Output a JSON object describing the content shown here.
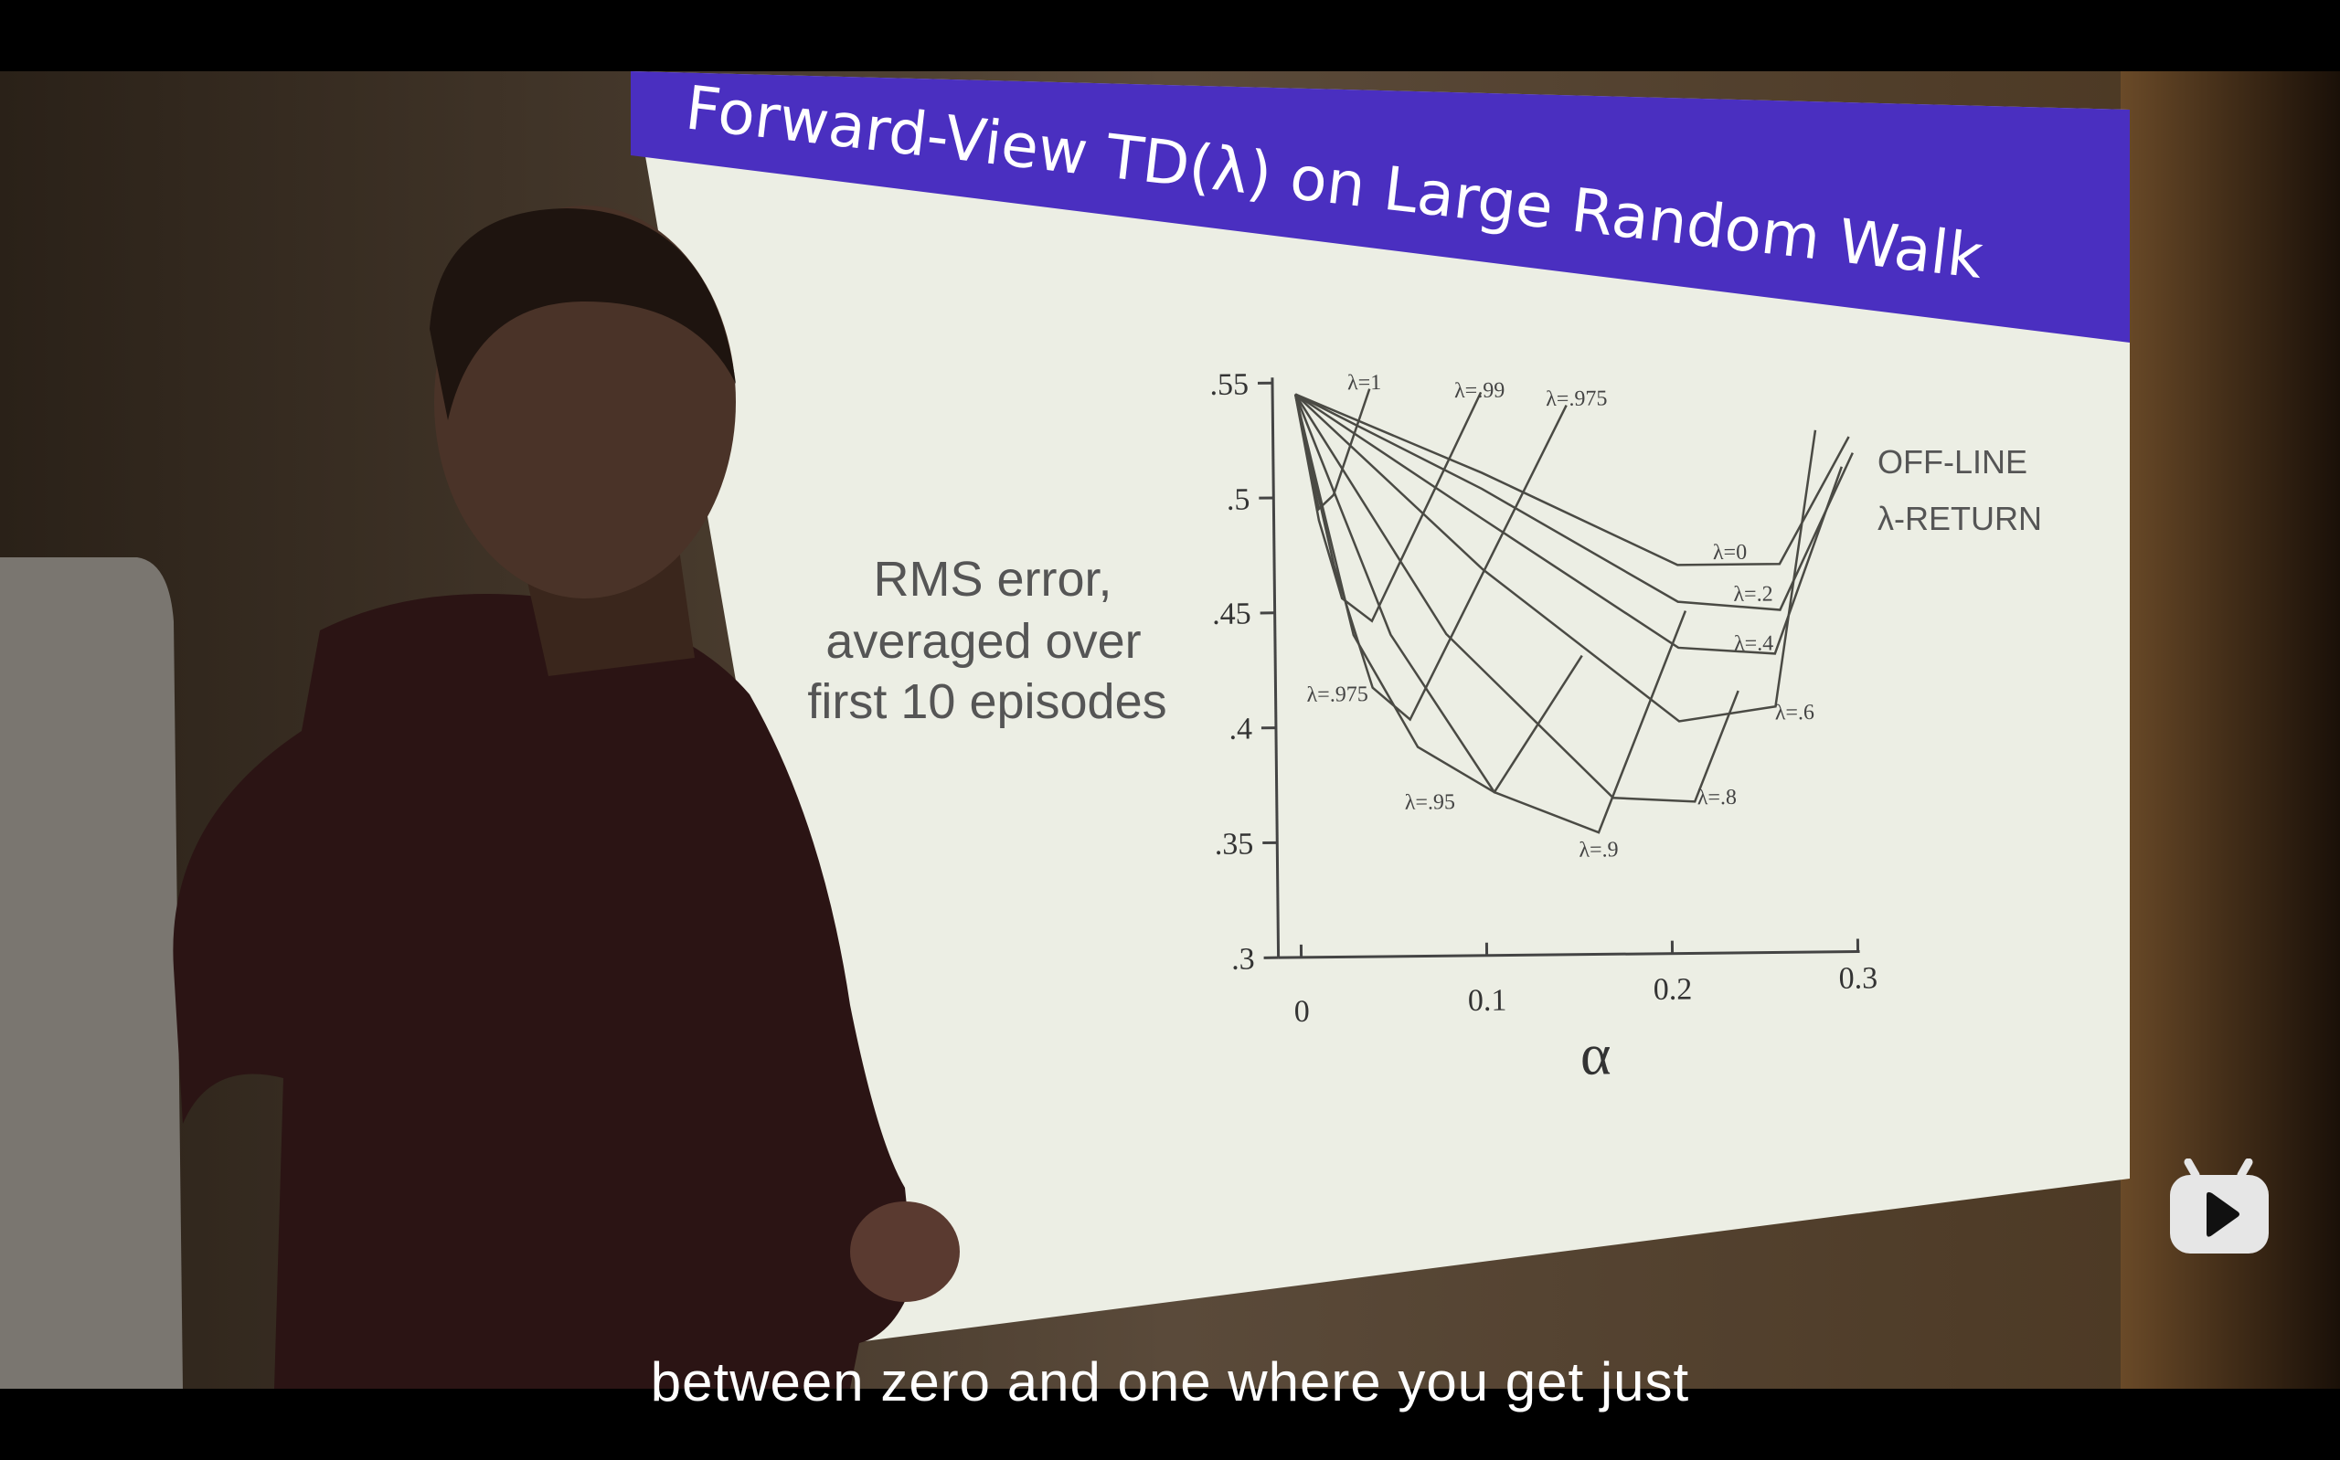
{
  "video": {
    "subtitle": "between zero and one where you get just",
    "logo": "bilibili-tv-play-icon"
  },
  "slide": {
    "title": "Forward-View TD(λ) on Large Random Walk",
    "header_color": "#4a2fc0",
    "ylabel_lines": [
      "RMS error,",
      "averaged over",
      "first 10 episodes"
    ],
    "xlabel": "α",
    "annotation_lines": [
      "OFF-LINE",
      "λ-RETURN"
    ],
    "y_ticks": [
      ".55",
      ".5",
      ".45",
      ".4",
      ".35",
      ".3"
    ],
    "x_ticks": [
      "0",
      "0.1",
      "0.2",
      "0.3"
    ],
    "curve_labels": [
      "λ=1",
      "λ=.99",
      "λ=.975",
      "λ=0",
      "λ=.2",
      "λ=.4",
      "λ=.6",
      "λ=.8",
      "λ=.9",
      "λ=.95",
      "λ=.975"
    ],
    "figure": {
      "x_range": [
        0,
        0.3
      ],
      "y_range": [
        0.3,
        0.55
      ],
      "curves": [
        {
          "lambda": "0",
          "points": [
            [
              0,
              0.545
            ],
            [
              0.1,
              0.51
            ],
            [
              0.205,
              0.469
            ],
            [
              0.26,
              0.469
            ],
            [
              0.298,
              0.524
            ]
          ]
        },
        {
          "lambda": ".2",
          "points": [
            [
              0,
              0.545
            ],
            [
              0.1,
              0.503
            ],
            [
              0.205,
              0.453
            ],
            [
              0.26,
              0.449
            ],
            [
              0.3,
              0.517
            ]
          ]
        },
        {
          "lambda": ".4",
          "points": [
            [
              0,
              0.545
            ],
            [
              0.1,
              0.49
            ],
            [
              0.205,
              0.433
            ],
            [
              0.257,
              0.43
            ],
            [
              0.294,
              0.511
            ]
          ]
        },
        {
          "lambda": ".6",
          "points": [
            [
              0,
              0.545
            ],
            [
              0.1,
              0.468
            ],
            [
              0.205,
              0.401
            ],
            [
              0.257,
              0.407
            ],
            [
              0.28,
              0.527
            ]
          ]
        },
        {
          "lambda": ".8",
          "points": [
            [
              0,
              0.545
            ],
            [
              0.08,
              0.44
            ],
            [
              0.169,
              0.368
            ],
            [
              0.213,
              0.366
            ],
            [
              0.237,
              0.414
            ]
          ]
        },
        {
          "lambda": ".9",
          "points": [
            [
              0,
              0.545
            ],
            [
              0.05,
              0.44
            ],
            [
              0.105,
              0.371
            ],
            [
              0.161,
              0.353
            ],
            [
              0.209,
              0.449
            ]
          ]
        },
        {
          "lambda": ".95",
          "points": [
            [
              0,
              0.545
            ],
            [
              0.03,
              0.44
            ],
            [
              0.064,
              0.391
            ],
            [
              0.105,
              0.371
            ],
            [
              0.153,
              0.43
            ]
          ]
        },
        {
          "lambda": ".975",
          "points": [
            [
              0,
              0.545
            ],
            [
              0.02,
              0.47
            ],
            [
              0.04,
              0.417
            ],
            [
              0.06,
              0.403
            ],
            [
              0.146,
              0.539
            ]
          ]
        },
        {
          "lambda": ".99",
          "points": [
            [
              0,
              0.545
            ],
            [
              0.012,
              0.49
            ],
            [
              0.024,
              0.456
            ],
            [
              0.04,
              0.446
            ],
            [
              0.1,
              0.545
            ]
          ]
        },
        {
          "lambda": "1",
          "points": [
            [
              0,
              0.545
            ],
            [
              0.012,
              0.495
            ],
            [
              0.02,
              0.501
            ],
            [
              0.04,
              0.547
            ]
          ]
        }
      ]
    }
  }
}
